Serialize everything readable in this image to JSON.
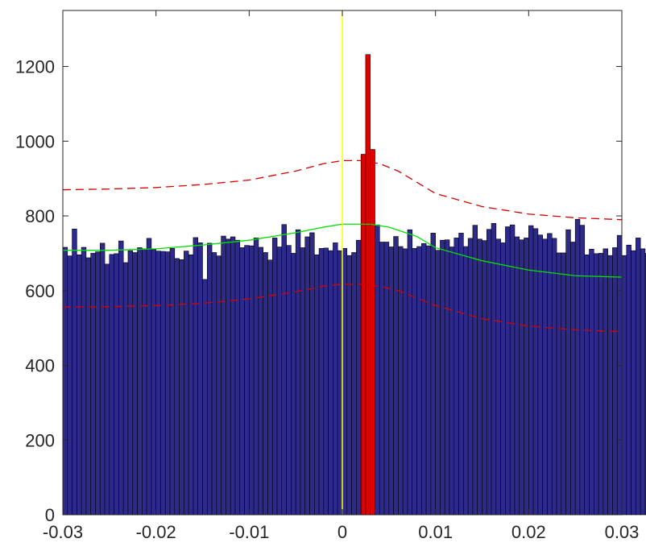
{
  "chart_data": {
    "type": "bar",
    "title": "",
    "xlabel": "",
    "ylabel": "",
    "xlim": [
      -0.03,
      0.03
    ],
    "ylim": [
      0,
      1350
    ],
    "grid": false,
    "legend": "none",
    "x_ticks": [
      -0.03,
      -0.02,
      -0.01,
      0,
      0.01,
      0.02,
      0.03
    ],
    "x_tick_labels": [
      "-0.03",
      "-0.02",
      "-0.01",
      "0",
      "0.01",
      "0.02",
      "0.03"
    ],
    "y_ticks": [
      0,
      200,
      400,
      600,
      800,
      1000,
      1200
    ],
    "y_tick_labels": [
      "0",
      "200",
      "400",
      "600",
      "800",
      "1000",
      "1200"
    ],
    "bin_width": 0.0005,
    "bin_start": -0.03,
    "bar_color": "#2e2a8c",
    "highlight_color": "#e00000",
    "highlight_bins": [
      0.002,
      0.0025,
      0.003
    ],
    "counts": [
      716,
      693,
      765,
      696,
      716,
      688,
      700,
      704,
      727,
      671,
      697,
      699,
      733,
      675,
      707,
      702,
      715,
      712,
      740,
      710,
      706,
      705,
      704,
      713,
      686,
      683,
      706,
      696,
      742,
      728,
      630,
      727,
      702,
      693,
      746,
      738,
      744,
      735,
      715,
      721,
      720,
      741,
      716,
      702,
      682,
      741,
      717,
      777,
      721,
      700,
      763,
      715,
      744,
      755,
      696,
      713,
      714,
      707,
      728,
      707,
      713,
      694,
      702,
      735,
      701,
      755,
      780,
      776,
      730,
      730,
      717,
      745,
      718,
      712,
      763,
      713,
      718,
      726,
      720,
      754,
      708,
      735,
      736,
      717,
      741,
      754,
      718,
      740,
      775,
      738,
      734,
      764,
      780,
      738,
      728,
      771,
      776,
      744,
      736,
      741,
      774,
      766,
      749,
      738,
      753,
      740,
      701,
      701,
      763,
      730,
      791,
      775,
      696,
      711,
      699,
      700,
      712,
      694,
      715,
      748,
      694,
      722,
      707,
      741,
      712,
      700,
      746,
      719,
      749,
      695,
      700,
      712,
      665,
      760,
      707,
      742,
      755,
      703,
      715,
      708,
      760,
      664,
      700,
      739,
      650,
      656,
      671,
      661,
      690,
      640,
      681,
      640,
      675,
      668,
      695,
      660,
      606,
      640,
      665,
      669,
      720,
      645,
      645,
      666,
      613,
      659,
      643,
      634,
      658,
      667,
      661,
      600,
      673,
      676,
      638,
      664,
      647,
      616,
      636,
      668,
      686,
      663,
      651,
      619,
      619,
      668,
      640,
      648,
      657,
      645,
      648,
      656,
      665,
      687,
      653,
      679,
      605,
      664,
      655,
      631,
      648,
      658,
      693,
      667,
      644,
      640,
      634,
      653,
      629,
      664,
      630,
      661,
      650,
      605,
      648,
      613,
      651,
      640,
      613,
      666,
      632,
      647,
      659,
      645,
      616,
      653,
      658,
      645,
      633,
      655,
      667,
      654,
      630,
      625,
      648,
      612,
      622,
      649,
      634,
      613,
      632,
      647,
      626,
      637,
      601,
      634,
      662,
      605,
      623,
      618,
      641,
      636,
      603,
      633,
      649,
      652,
      631,
      626,
      602,
      610
    ],
    "highlight_counts": [
      965,
      1232,
      978
    ],
    "mean_line": {
      "color": "#00e000",
      "x": [
        -0.03,
        -0.025,
        -0.02,
        -0.015,
        -0.01,
        -0.005,
        -0.002,
        0,
        0.001,
        0.003,
        0.005,
        0.008,
        0.01,
        0.015,
        0.02,
        0.025,
        0.03
      ],
      "y": [
        708,
        708,
        712,
        722,
        735,
        755,
        770,
        778,
        778,
        778,
        770,
        745,
        715,
        680,
        655,
        640,
        636
      ]
    },
    "upper_line": {
      "color": "#d40000",
      "x": [
        -0.03,
        -0.025,
        -0.02,
        -0.015,
        -0.01,
        -0.005,
        -0.002,
        0,
        0.002,
        0.004,
        0.006,
        0.008,
        0.01,
        0.015,
        0.02,
        0.025,
        0.03
      ],
      "y": [
        870,
        872,
        876,
        884,
        896,
        920,
        940,
        948,
        948,
        940,
        920,
        890,
        860,
        825,
        805,
        795,
        790
      ]
    },
    "lower_line": {
      "color": "#d40000",
      "x": [
        -0.03,
        -0.025,
        -0.02,
        -0.015,
        -0.01,
        -0.005,
        -0.002,
        0,
        0.002,
        0.004,
        0.006,
        0.008,
        0.01,
        0.015,
        0.02,
        0.025,
        0.03
      ],
      "y": [
        556,
        557,
        560,
        566,
        578,
        597,
        612,
        617,
        617,
        612,
        600,
        580,
        560,
        525,
        505,
        495,
        490
      ]
    },
    "zero_line": {
      "color": "#ffff00",
      "x": 0
    }
  }
}
